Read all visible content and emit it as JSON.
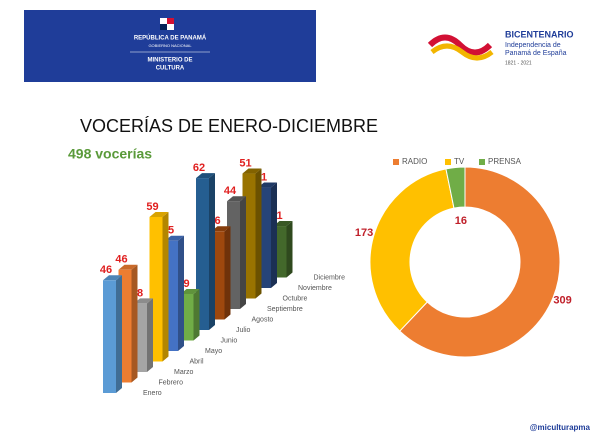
{
  "header": {
    "left_logo": [
      "REPÚBLICA DE PANAMÁ",
      "GOBIERNO NACIONAL",
      "MINISTERIO DE",
      "CULTURA"
    ],
    "right_logo": {
      "title": "BICENTENARIO",
      "lines": [
        "Independencia de",
        "Panamá de España"
      ],
      "years": "1821 - 2021"
    }
  },
  "chart_data": [
    {
      "type": "bar3d",
      "title": "VOCERÍAS DE ENERO-DICIEMBRE",
      "subtitle": "498 vocerías",
      "categories": [
        "Enero",
        "Febrero",
        "Marzo",
        "Abril",
        "Mayo",
        "Junio",
        "Julio",
        "Agosto",
        "Septiembre",
        "Octubre",
        "Noviembre",
        "Diciembre"
      ],
      "values": [
        46,
        46,
        28,
        59,
        45,
        19,
        62,
        36,
        44,
        51,
        41,
        21
      ],
      "colors": [
        "#5b9bd5",
        "#ed7d31",
        "#a5a5a5",
        "#ffc000",
        "#4472c4",
        "#70ad47",
        "#255e91",
        "#9e480e",
        "#636363",
        "#997300",
        "#264478",
        "#43682b"
      ]
    },
    {
      "type": "donut",
      "categories": [
        "RADIO",
        "TV",
        "PRENSA"
      ],
      "values": [
        309,
        173,
        16
      ],
      "colors": [
        "#ed7d31",
        "#ffc000",
        "#70ad47"
      ],
      "legend": "top"
    }
  ],
  "footer": "@miculturapma"
}
